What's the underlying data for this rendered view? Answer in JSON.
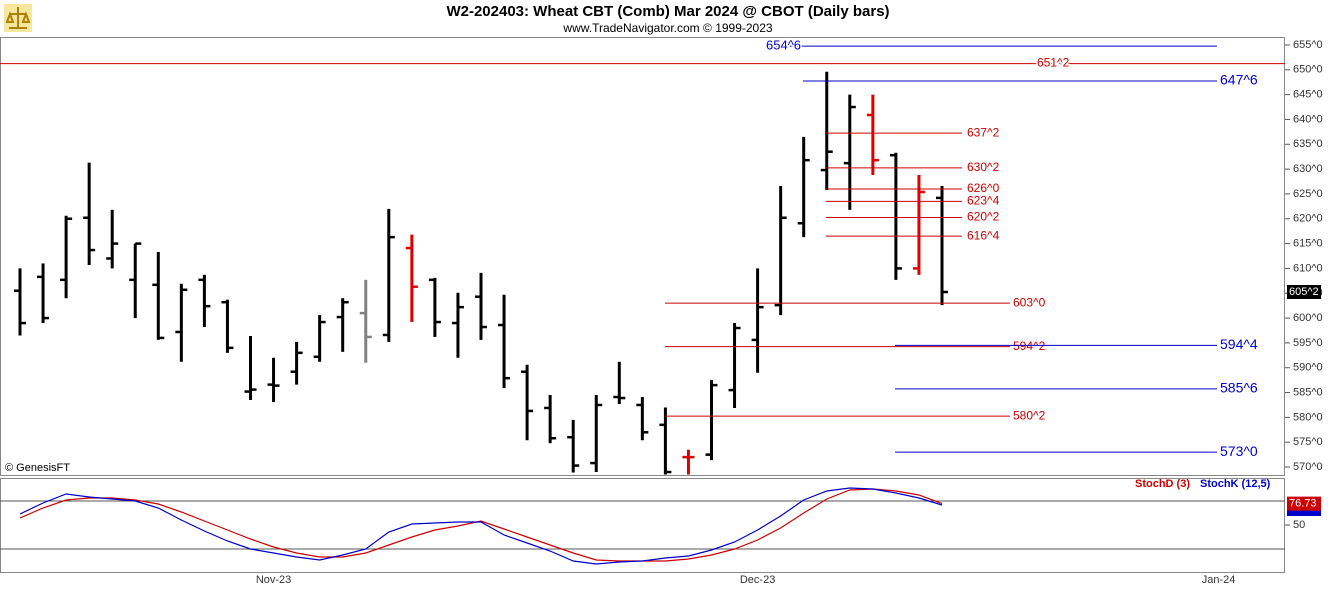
{
  "chart_data": [
    {
      "type": "ohlc",
      "title": "W2-202403:  Wheat CBT (Comb) Mar 2024 @ CBOT  (Daily bars)",
      "subtitle": "www.TradeNavigator.com © 1999-2023",
      "source": "© GenesisFT",
      "ylim": [
        568.4,
        656.6
      ],
      "yticks": [
        {
          "value": 655,
          "label": "655^0"
        },
        {
          "value": 650,
          "label": "650^0"
        },
        {
          "value": 645,
          "label": "645^0"
        },
        {
          "value": 640,
          "label": "640^0"
        },
        {
          "value": 635,
          "label": "635^0"
        },
        {
          "value": 630,
          "label": "630^0"
        },
        {
          "value": 625,
          "label": "625^0"
        },
        {
          "value": 620,
          "label": "620^0"
        },
        {
          "value": 615,
          "label": "615^0"
        },
        {
          "value": 610,
          "label": "610^0"
        },
        {
          "value": 605,
          "label": "605^0"
        },
        {
          "value": 600,
          "label": "600^0"
        },
        {
          "value": 595,
          "label": "595^0"
        },
        {
          "value": 590,
          "label": "590^0"
        },
        {
          "value": 585,
          "label": "585^0"
        },
        {
          "value": 580,
          "label": "580^0"
        },
        {
          "value": 575,
          "label": "575^0"
        },
        {
          "value": 570,
          "label": "570^0"
        }
      ],
      "open": [
        605.5,
        608.3,
        607.7,
        620.2,
        612,
        607.7,
        606.7,
        597.2,
        607.7,
        603.2,
        585.2,
        586.6,
        589.2,
        592.2,
        600.2,
        601,
        596.6,
        614.1,
        607.7,
        599,
        604.3,
        598.6,
        589.2,
        581.9,
        576,
        570.8,
        584.1,
        582.5,
        578.5,
        572,
        572.5,
        585.5,
        595.6,
        602.6,
        619.1,
        629.8,
        631.2,
        640.9,
        632.8,
        610,
        624.2
      ],
      "high": [
        610,
        611,
        620.6,
        631.3,
        621.8,
        615,
        613.3,
        606.9,
        608.7,
        603.7,
        596.4,
        592,
        595.2,
        600.6,
        604,
        607.7,
        622,
        616.8,
        608.1,
        605.1,
        609.1,
        604.7,
        590.6,
        584.5,
        579.5,
        584.5,
        591.2,
        584.1,
        582,
        573.5,
        587.5,
        599,
        610,
        626.6,
        636.5,
        649.6,
        645,
        645,
        633.3,
        628.8,
        626.6
      ],
      "low": [
        596.5,
        599,
        604,
        610.7,
        610,
        600,
        595.6,
        591.2,
        598.2,
        593,
        583.5,
        583.1,
        586.6,
        591.2,
        593.2,
        591,
        595.2,
        599.2,
        596.2,
        592,
        595.6,
        585.9,
        575.4,
        574.8,
        568.9,
        569,
        582.7,
        575.4,
        568.5,
        568.5,
        571.4,
        581.9,
        589,
        600.6,
        616.3,
        625.8,
        621.8,
        628.8,
        607.7,
        608.7,
        602.6
      ],
      "close": [
        599,
        600,
        620,
        613.7,
        615,
        615,
        596,
        605.7,
        602.4,
        594,
        585.6,
        586.4,
        593,
        599.2,
        603.2,
        596.2,
        616.3,
        606.3,
        599.2,
        602.2,
        598.2,
        587.9,
        581.3,
        575.8,
        570.3,
        582.5,
        583.9,
        577,
        569,
        572,
        586.5,
        598,
        602.2,
        620.2,
        631.8,
        633.5,
        642.5,
        631.8,
        610,
        625.4,
        605.25
      ],
      "close_labels": [
        null,
        null,
        null,
        null,
        null,
        null,
        null,
        null,
        null,
        null,
        null,
        null,
        null,
        null,
        null,
        null,
        null,
        null,
        null,
        null,
        null,
        null,
        null,
        null,
        null,
        null,
        null,
        null,
        null,
        null,
        null,
        null,
        null,
        null,
        null,
        null,
        null,
        null,
        null,
        null,
        "605^2"
      ],
      "colors": [
        "#000000",
        "#000000",
        "#000000",
        "#000000",
        "#000000",
        "#000000",
        "#000000",
        "#000000",
        "#000000",
        "#000000",
        "#000000",
        "#000000",
        "#000000",
        "#000000",
        "#000000",
        "#808080",
        "#000000",
        "#e00000",
        "#000000",
        "#000000",
        "#000000",
        "#000000",
        "#000000",
        "#000000",
        "#000000",
        "#000000",
        "#000000",
        "#000000",
        "#000000",
        "#e00000",
        "#000000",
        "#000000",
        "#000000",
        "#000000",
        "#000000",
        "#000000",
        "#000000",
        "#e00000",
        "#000000",
        "#e00000",
        "#000000"
      ],
      "levels": [
        {
          "value": 654.75,
          "label": "654^6",
          "color": "#0000cc"
        },
        {
          "value": 651.25,
          "label": "651^2",
          "color": "#cc0000"
        },
        {
          "value": 647.75,
          "label": "647^6",
          "color": "#0000cc"
        },
        {
          "value": 637.25,
          "label": "637^2",
          "color": "#cc0000"
        },
        {
          "value": 630.25,
          "label": "630^2",
          "color": "#cc0000"
        },
        {
          "value": 626,
          "label": "626^0",
          "color": "#cc0000"
        },
        {
          "value": 623.5,
          "label": "623^4",
          "color": "#cc0000"
        },
        {
          "value": 620.25,
          "label": "620^2",
          "color": "#cc0000"
        },
        {
          "value": 616.5,
          "label": "616^4",
          "color": "#cc0000"
        },
        {
          "value": 603,
          "label": "603^0",
          "color": "#cc0000"
        },
        {
          "value": 594.25,
          "label": "594^2",
          "color": "#cc0000"
        },
        {
          "value": 594.5,
          "label": "594^4",
          "color": "#0000cc"
        },
        {
          "value": 585.75,
          "label": "585^6",
          "color": "#0000cc"
        },
        {
          "value": 580.25,
          "label": "580^2",
          "color": "#cc0000"
        },
        {
          "value": 573,
          "label": "573^0",
          "color": "#0000cc"
        }
      ]
    },
    {
      "type": "line",
      "categories": [
        null,
        null,
        null,
        null,
        null,
        null,
        null,
        null,
        null,
        null,
        null,
        "Nov-23",
        null,
        null,
        null,
        null,
        null,
        null,
        null,
        null,
        null,
        null,
        null,
        null,
        null,
        null,
        null,
        null,
        null,
        null,
        null,
        null,
        "Dec-23",
        null,
        null,
        null,
        null,
        null,
        null,
        null,
        null,
        null,
        null,
        null,
        null,
        null,
        null,
        null,
        null,
        null,
        null,
        null,
        "Jan-24",
        null,
        null
      ],
      "series": [
        {
          "name": "StochD (3)",
          "color": "#cc0000",
          "values": [
            58.75,
            71.25,
            81.25,
            83.75,
            83.75,
            81.25,
            76.25,
            66.25,
            55,
            43.75,
            32.5,
            22.5,
            15,
            10,
            10,
            15,
            25,
            35,
            43.75,
            48.75,
            55,
            45,
            35,
            25,
            15,
            6.25,
            5,
            5,
            5,
            7.5,
            12.5,
            20,
            31.25,
            46.25,
            65,
            82.5,
            93.75,
            95,
            92.5,
            87.5,
            76.73,
            null,
            null,
            null,
            null,
            null,
            null,
            null,
            null,
            null,
            null,
            null,
            null,
            null,
            null
          ]
        },
        {
          "name": "StochK (12,5)",
          "color": "#0000cc",
          "values": [
            63.75,
            77.5,
            88.75,
            85,
            82.5,
            80,
            71.25,
            56.25,
            42.5,
            30,
            20,
            15,
            10,
            6.25,
            12.5,
            20,
            41.25,
            51.25,
            52.5,
            53.75,
            53.75,
            37.5,
            27.5,
            17.5,
            5,
            1.25,
            3.75,
            5,
            8.75,
            11.25,
            18.75,
            28.75,
            43.75,
            61.25,
            81.25,
            92.5,
            96.25,
            95,
            90,
            83.75,
            75,
            null,
            null,
            null,
            null,
            null,
            null,
            null,
            null,
            null,
            null,
            null,
            null,
            null,
            null
          ]
        }
      ],
      "ylim": [
        -8.75,
        108.75
      ],
      "yticks": [
        50
      ],
      "levels": [
        80,
        20
      ]
    }
  ]
}
